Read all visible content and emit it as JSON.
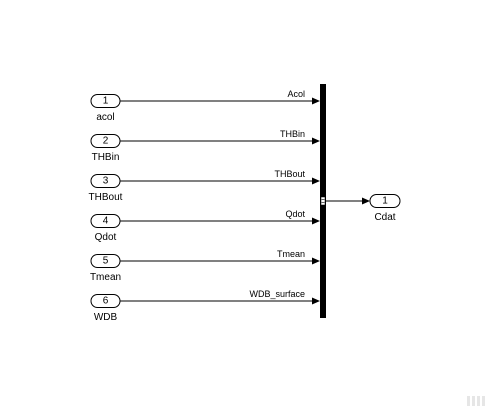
{
  "inports": [
    {
      "num": "1",
      "name": "acol",
      "signal": "Acol"
    },
    {
      "num": "2",
      "name": "THBin",
      "signal": "THBin"
    },
    {
      "num": "3",
      "name": "THBout",
      "signal": "THBout"
    },
    {
      "num": "4",
      "name": "Qdot",
      "signal": "Qdot"
    },
    {
      "num": "5",
      "name": "Tmean",
      "signal": "Tmean"
    },
    {
      "num": "6",
      "name": "WDB",
      "signal": "WDB_surface"
    }
  ],
  "outport": {
    "num": "1",
    "name": "Cdat"
  },
  "colors": {
    "line": "#000000",
    "background": "#ffffff"
  }
}
